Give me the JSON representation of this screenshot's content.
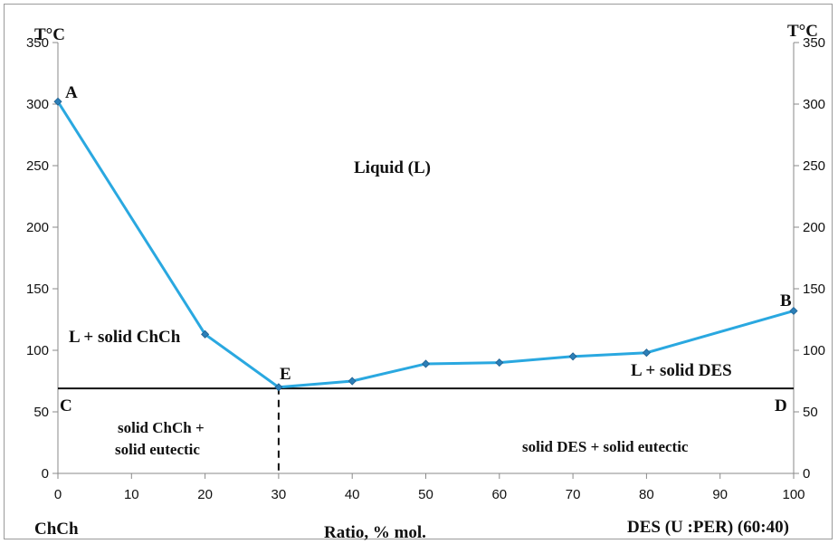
{
  "chart_data": {
    "type": "line",
    "x": [
      0,
      20,
      30,
      40,
      50,
      60,
      70,
      80,
      100
    ],
    "series": [
      {
        "values": [
          302,
          113,
          70,
          75,
          89,
          90,
          95,
          98,
          132
        ],
        "color": "#2aa8e0"
      }
    ],
    "eutectic_line_y": 69,
    "xlim": [
      0,
      100
    ],
    "ylim": [
      0,
      350
    ],
    "xticks": [
      "0",
      "10",
      "20",
      "30",
      "40",
      "50",
      "60",
      "70",
      "80",
      "90",
      "100"
    ],
    "yticks": [
      "0",
      "50",
      "100",
      "150",
      "200",
      "250",
      "300",
      "350"
    ],
    "ylabel_left": "T°C",
    "ylabel_right": "T°C",
    "xlabel": "Ratio, % mol.",
    "x_left_end_label": "ChCh",
    "x_right_end_label": "DES (U :PER) (60:40)",
    "point_labels": {
      "A": "A",
      "B": "B",
      "C": "C",
      "D": "D",
      "E": "E"
    },
    "region_labels": {
      "liquid": "Liquid (L)",
      "l_solid_chch": "L + solid  ChCh",
      "l_solid_des": "L + solid DES",
      "solid_chch_line1": "solid ChCh +",
      "solid_chch_line2": "solid eutectic",
      "solid_des": "solid DES + solid eutectic"
    },
    "grid": false
  }
}
